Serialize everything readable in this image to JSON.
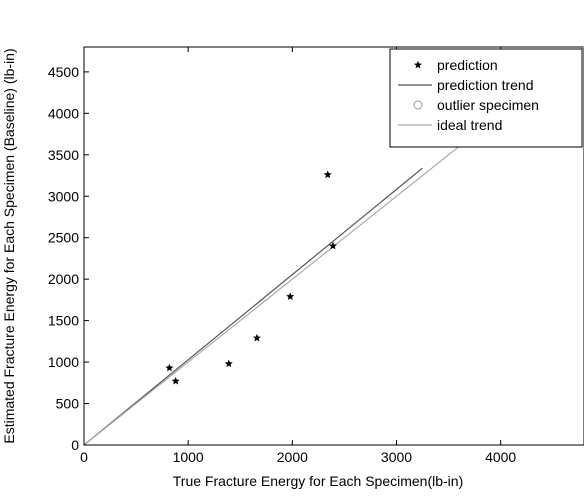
{
  "chart_data": {
    "type": "scatter",
    "title": "",
    "xlabel": "True Fracture Energy for Each Specimen(lb-in)",
    "ylabel": "Estimated Fracture Energy for Each Specimen (Baseline) (lb-in)",
    "xlim": [
      0,
      4800
    ],
    "ylim": [
      0,
      4800
    ],
    "xticks": [
      0,
      1000,
      2000,
      3000,
      4000
    ],
    "yticks": [
      0,
      500,
      1000,
      1500,
      2000,
      2500,
      3000,
      3500,
      4000,
      4500
    ],
    "grid": false,
    "legend_position": "top-right",
    "series": [
      {
        "name": "prediction",
        "kind": "markers",
        "marker": "star",
        "color": "#000000",
        "points": [
          {
            "x": 820,
            "y": 930
          },
          {
            "x": 880,
            "y": 770
          },
          {
            "x": 1390,
            "y": 980
          },
          {
            "x": 1660,
            "y": 1290
          },
          {
            "x": 1980,
            "y": 1790
          },
          {
            "x": 2340,
            "y": 3260
          },
          {
            "x": 2390,
            "y": 2400
          }
        ]
      },
      {
        "name": "prediction trend",
        "kind": "line",
        "color": "#555555",
        "points": [
          {
            "x": 0,
            "y": 0
          },
          {
            "x": 3250,
            "y": 3340
          }
        ]
      },
      {
        "name": "outlier specimen",
        "kind": "markers",
        "marker": "circle",
        "color": "#999999",
        "points": []
      },
      {
        "name": "ideal trend",
        "kind": "line",
        "color": "#aaaaaa",
        "points": [
          {
            "x": 0,
            "y": 0
          },
          {
            "x": 4800,
            "y": 4800
          }
        ]
      }
    ]
  }
}
